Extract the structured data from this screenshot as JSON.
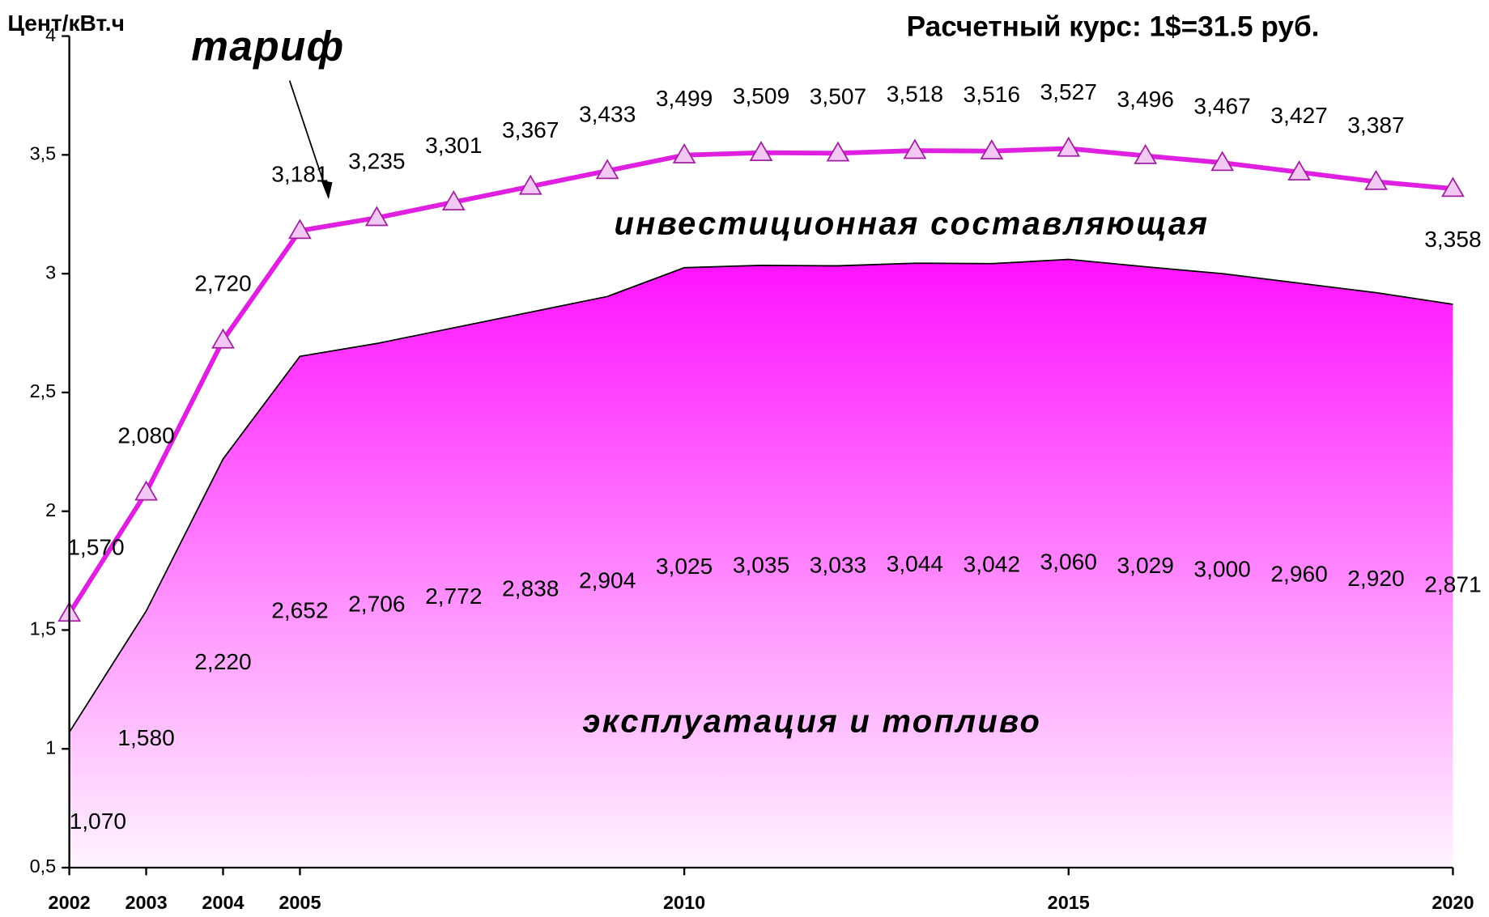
{
  "chart_data": {
    "type": "line",
    "y_label": "Цент/кВт.ч",
    "annotation": "Расчетный курс: 1$=31.5 руб.",
    "middle_annotation": "инвестиционная составляющая",
    "x": [
      2002,
      2003,
      2004,
      2005,
      2006,
      2007,
      2008,
      2009,
      2010,
      2011,
      2012,
      2013,
      2014,
      2015,
      2016,
      2017,
      2018,
      2019,
      2020
    ],
    "xlim": [
      2002,
      2020
    ],
    "xticks": [
      2002,
      2003,
      2004,
      2005,
      2010,
      2015,
      2020
    ],
    "ylim": [
      0.5,
      4
    ],
    "yticks": [
      {
        "value": 0.5,
        "label": "0,5"
      },
      1,
      {
        "value": 1.5,
        "label": "1,5"
      },
      2,
      {
        "value": 2.5,
        "label": "2,5"
      },
      3,
      {
        "value": 3.5,
        "label": "3,5"
      },
      4
    ],
    "series": [
      {
        "name": "эксплуатация и топливо",
        "type": "area",
        "color": "#ff00ff",
        "values": [
          1.07,
          1.58,
          2.22,
          2.652,
          2.706,
          2.772,
          2.838,
          2.904,
          3.025,
          3.035,
          3.033,
          3.044,
          3.042,
          3.06,
          3.029,
          3.0,
          2.96,
          2.92,
          2.871
        ],
        "value_labels": [
          "1,070",
          "1,580",
          "2,220",
          "2,652",
          "2,706",
          "2,772",
          "2,838",
          "2,904",
          "3,025",
          "3,035",
          "3,033",
          "3,044",
          "3,042",
          "3,060",
          "3,029",
          "3,000",
          "2,960",
          "2,920",
          "2,871"
        ]
      },
      {
        "name": "тариф",
        "type": "line",
        "color": "#e020e0",
        "values": [
          1.57,
          2.08,
          2.72,
          3.181,
          3.235,
          3.301,
          3.367,
          3.433,
          3.499,
          3.509,
          3.507,
          3.518,
          3.516,
          3.527,
          3.496,
          3.467,
          3.427,
          3.387,
          3.358
        ],
        "value_labels": [
          "1,570",
          "2,080",
          "2,720",
          "3,181",
          "3,235",
          "3,301",
          "3,367",
          "3,433",
          "3,499",
          "3,509",
          "3,507",
          "3,518",
          "3,516",
          "3,527",
          "3,496",
          "3,467",
          "3,427",
          "3,387",
          "3,358"
        ]
      }
    ]
  }
}
